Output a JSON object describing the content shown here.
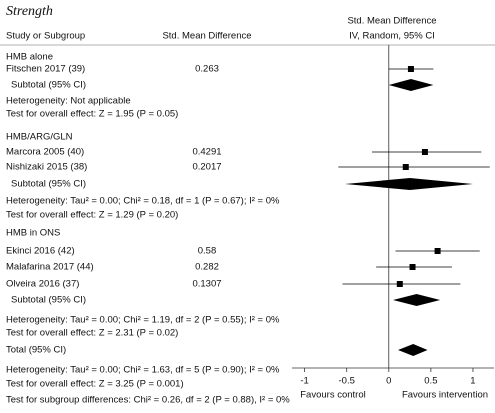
{
  "chart_data": {
    "type": "forest",
    "title": "Strength",
    "headers": {
      "study": "Study or Subgroup",
      "value": "Std. Mean Difference",
      "plot": "Std. Mean Difference",
      "plot_method": "IV, Random, 95% CI"
    },
    "groups": [
      {
        "name": "HMB alone",
        "studies": [
          {
            "name": "Fitschen 2017 (39)",
            "value": 0.263,
            "ci": [
              0.0,
              0.53
            ]
          }
        ],
        "subtotal": {
          "label": "Subtotal (95% CI)",
          "value": 0.263,
          "ci": [
            0.0,
            0.53
          ]
        },
        "heterogeneity": "Heterogeneity: Not applicable",
        "overall_effect": "Test for overall effect: Z = 1.95 (P = 0.05)"
      },
      {
        "name": "HMB/ARG/GLN",
        "studies": [
          {
            "name": "Marcora 2005 (40)",
            "value": 0.4291,
            "ci": [
              -0.2,
              1.1
            ]
          },
          {
            "name": "Nishizaki 2015 (38)",
            "value": 0.2017,
            "ci": [
              -0.6,
              1.2
            ]
          }
        ],
        "subtotal": {
          "label": "Subtotal (95% CI)",
          "value": 0.25,
          "ci": [
            -0.52,
            1.0
          ]
        },
        "heterogeneity": "Heterogeneity: Tau² = 0.00; Chi² = 0.18, df = 1 (P = 0.67); I² = 0%",
        "overall_effect": "Test for overall effect: Z = 1.29 (P = 0.20)"
      },
      {
        "name": "HMB in ONS",
        "studies": [
          {
            "name": "Ekinci 2016 (42)",
            "value": 0.58,
            "ci": [
              0.08,
              1.08
            ]
          },
          {
            "name": "Malafarina 2017 (44)",
            "value": 0.282,
            "ci": [
              -0.15,
              0.75
            ]
          },
          {
            "name": "Olveira 2016 (37)",
            "value": 0.1307,
            "ci": [
              -0.55,
              0.85
            ]
          }
        ],
        "subtotal": {
          "label": "Subtotal (95% CI)",
          "value": 0.33,
          "ci": [
            0.05,
            0.61
          ]
        },
        "heterogeneity": "Heterogeneity: Tau² = 0.00; Chi² = 1.19, df = 2 (P = 0.55); I² = 0%",
        "overall_effect": "Test for overall effect: Z = 2.31 (P = 0.02)"
      }
    ],
    "total": {
      "label": "Total (95% CI)",
      "value": 0.29,
      "ci": [
        0.11,
        0.46
      ],
      "heterogeneity": "Heterogeneity: Tau² = 0.00; Chi² = 1.63, df = 5 (P = 0.90); I² = 0%",
      "overall_effect": "Test for overall effect: Z = 3.25 (P = 0.001)",
      "subgroup_differences": "Test for subgroup differences: Chi² = 0.26, df = 2 (P = 0.88), I² = 0%"
    },
    "xlim": [
      -1.15,
      1.25
    ],
    "xticks": [
      -1,
      -0.5,
      0,
      0.5,
      1
    ],
    "x_labels": {
      "left": "Favours control",
      "right": "Favours intervention"
    }
  }
}
